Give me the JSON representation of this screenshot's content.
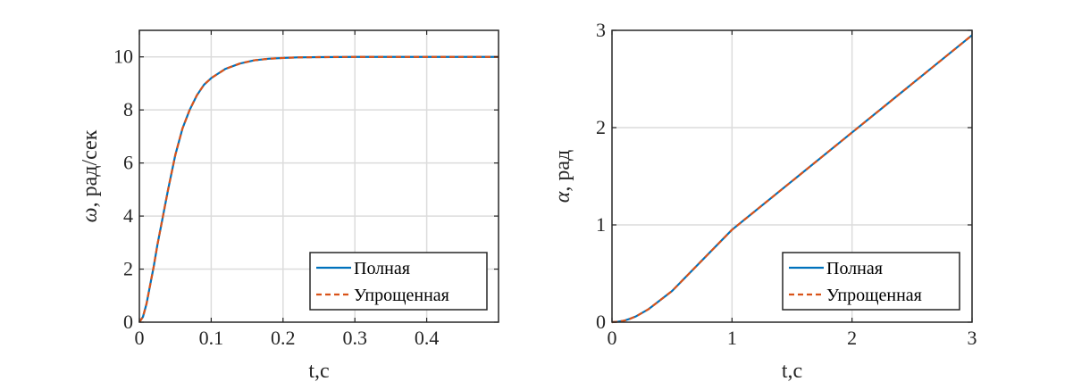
{
  "chart_data": [
    {
      "type": "line",
      "xlabel": "t,c",
      "ylabel_symbol": "ω",
      "ylabel_text": ", рад/сек",
      "xlim": [
        0,
        0.5
      ],
      "ylim": [
        0,
        11
      ],
      "xticks": [
        0,
        0.1,
        0.2,
        0.3,
        0.4
      ],
      "xtick_labels": [
        "0",
        "0.1",
        "0.2",
        "0.3",
        "0.4"
      ],
      "yticks": [
        0,
        2,
        4,
        6,
        8,
        10
      ],
      "ytick_labels": [
        "0",
        "2",
        "4",
        "6",
        "8",
        "10"
      ],
      "grid": true,
      "legend_position": "bottom-right",
      "series": [
        {
          "name": "Полная",
          "color": "#0072BD",
          "style": "solid",
          "x": [
            0,
            0.005,
            0.01,
            0.015,
            0.02,
            0.025,
            0.03,
            0.04,
            0.05,
            0.06,
            0.07,
            0.08,
            0.09,
            0.1,
            0.12,
            0.14,
            0.16,
            0.18,
            0.2,
            0.22,
            0.25,
            0.3,
            0.35,
            0.4,
            0.45,
            0.5
          ],
          "y": [
            0,
            0.2,
            0.7,
            1.4,
            2.1,
            2.9,
            3.6,
            5.0,
            6.3,
            7.3,
            8.0,
            8.55,
            8.95,
            9.2,
            9.55,
            9.75,
            9.87,
            9.93,
            9.96,
            9.98,
            9.99,
            10.0,
            10.0,
            10.0,
            10.0,
            10.0
          ]
        },
        {
          "name": "Упрощенная",
          "color": "#D95319",
          "style": "dashed",
          "x": [
            0,
            0.005,
            0.01,
            0.015,
            0.02,
            0.025,
            0.03,
            0.04,
            0.05,
            0.06,
            0.07,
            0.08,
            0.09,
            0.1,
            0.12,
            0.14,
            0.16,
            0.18,
            0.2,
            0.22,
            0.25,
            0.3,
            0.35,
            0.4,
            0.45,
            0.5
          ],
          "y": [
            0,
            0.2,
            0.7,
            1.4,
            2.1,
            2.9,
            3.6,
            5.0,
            6.3,
            7.3,
            8.0,
            8.55,
            8.95,
            9.2,
            9.55,
            9.75,
            9.87,
            9.93,
            9.96,
            9.98,
            9.99,
            10.0,
            10.0,
            10.0,
            10.0,
            10.0
          ]
        }
      ]
    },
    {
      "type": "line",
      "xlabel": "t,c",
      "ylabel_symbol": "α",
      "ylabel_text": ", рад",
      "xlim": [
        0,
        3
      ],
      "ylim": [
        0,
        3
      ],
      "xticks": [
        0,
        1,
        2,
        3
      ],
      "xtick_labels": [
        "0",
        "1",
        "2",
        "3"
      ],
      "yticks": [
        0,
        1,
        2,
        3
      ],
      "ytick_labels": [
        "0",
        "1",
        "2",
        "3"
      ],
      "grid": true,
      "legend_position": "bottom-right",
      "series": [
        {
          "name": "Полная",
          "color": "#0072BD",
          "style": "solid",
          "x": [
            0,
            0.05,
            0.1,
            0.15,
            0.2,
            0.3,
            0.5,
            1.0,
            1.5,
            2.0,
            2.5,
            3.0
          ],
          "y": [
            0,
            0.005,
            0.015,
            0.035,
            0.06,
            0.13,
            0.32,
            0.95,
            1.45,
            1.95,
            2.45,
            2.95
          ]
        },
        {
          "name": "Упрощенная",
          "color": "#D95319",
          "style": "dashed",
          "x": [
            0,
            0.05,
            0.1,
            0.15,
            0.2,
            0.3,
            0.5,
            1.0,
            1.5,
            2.0,
            2.5,
            3.0
          ],
          "y": [
            0,
            0.005,
            0.015,
            0.035,
            0.06,
            0.13,
            0.32,
            0.95,
            1.45,
            1.95,
            2.45,
            2.95
          ]
        }
      ]
    }
  ]
}
